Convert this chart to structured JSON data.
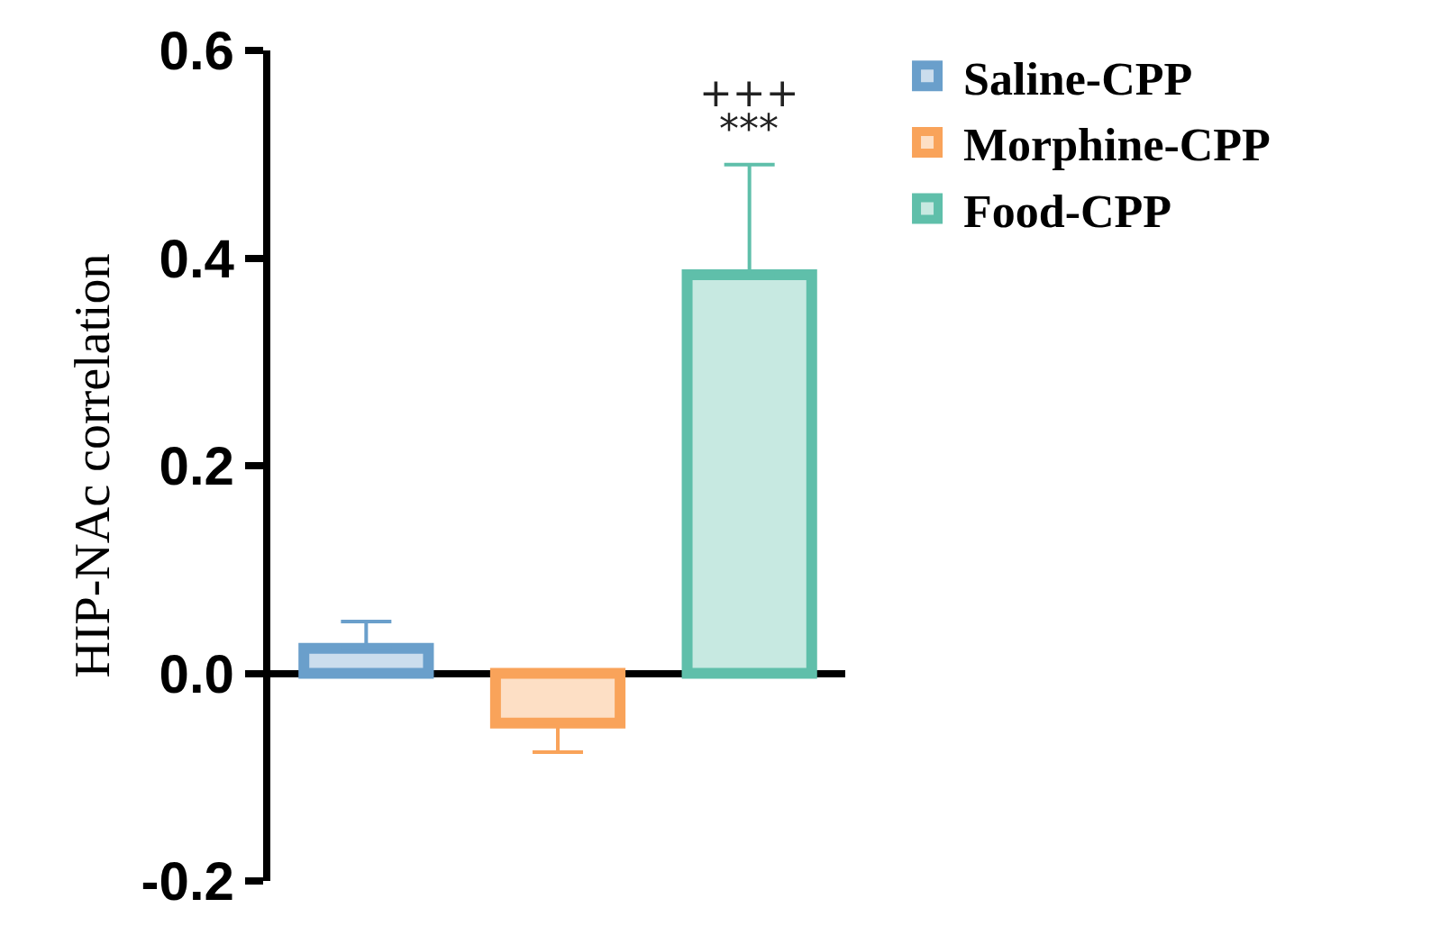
{
  "chart_data": {
    "type": "bar",
    "ylabel": "HIP-NAc correlation",
    "categories": [
      null,
      null,
      null
    ],
    "series": [
      {
        "name": "Saline-CPP",
        "color": "#6a9fcb",
        "values": [
          0.024,
          null,
          null
        ],
        "errors": [
          [
            0.024,
            0.05
          ],
          null,
          null
        ]
      },
      {
        "name": "Morphine-CPP",
        "color": "#f9a35a",
        "values": [
          null,
          -0.048,
          null
        ],
        "errors": [
          null,
          [
            -0.076,
            -0.048
          ],
          null
        ]
      },
      {
        "name": "Food-CPP",
        "color": "#5fbfaa",
        "values": [
          null,
          null,
          0.384
        ],
        "errors": [
          null,
          null,
          [
            0.384,
            0.49
          ]
        ]
      }
    ],
    "annotations": [
      "+++",
      "***"
    ],
    "ylim": [
      -0.2,
      0.6
    ],
    "yticks": [
      {
        "value": -0.2,
        "label": "-0.2"
      },
      {
        "value": 0,
        "label": "0.0"
      },
      {
        "value": 0.2,
        "label": "0.2"
      },
      {
        "value": 0.4,
        "label": "0.4"
      },
      {
        "value": 0.6,
        "label": "0.6"
      }
    ],
    "legend": "top right"
  }
}
